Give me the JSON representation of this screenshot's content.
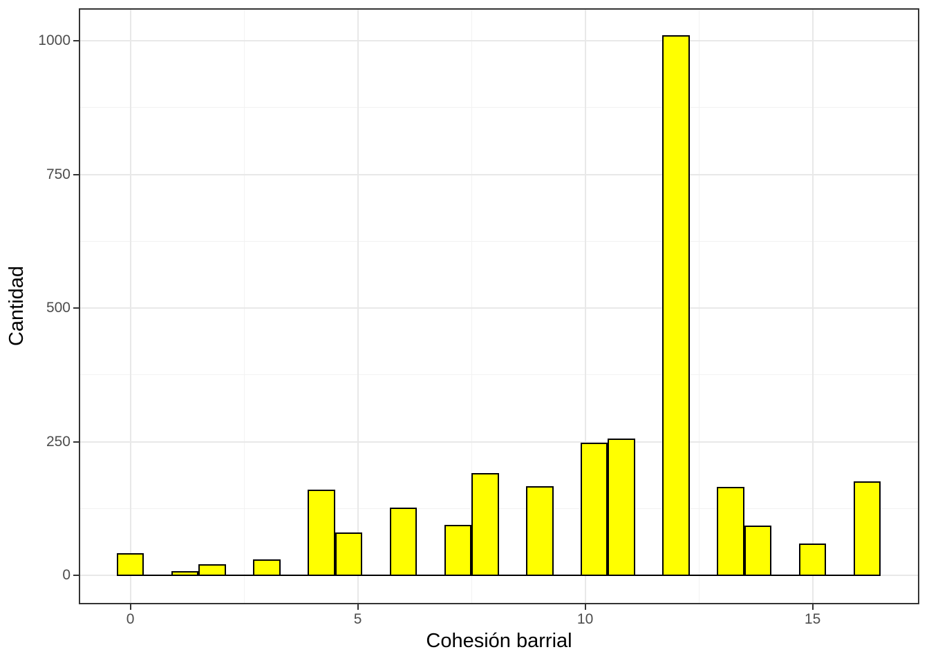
{
  "chart_data": {
    "type": "bar",
    "subtype": "histogram",
    "title": "",
    "xlabel": "Cohesión barrial",
    "ylabel": "Cantidad",
    "x_major_ticks": [
      0,
      5,
      10,
      15
    ],
    "x_tick_labels": [
      "0",
      "5",
      "10",
      "15"
    ],
    "x_minor_gridlines": [
      2.5,
      7.5,
      12.5
    ],
    "y_major_ticks": [
      0,
      250,
      500,
      750,
      1000
    ],
    "y_tick_labels": [
      "0",
      "250",
      "500",
      "750",
      "1000"
    ],
    "y_minor_gridlines": [
      125,
      375,
      625,
      875
    ],
    "xlim": [
      -1.103,
      17.316
    ],
    "ylim": [
      -51.5,
      1058.4
    ],
    "bin_width": 0.6,
    "bars": [
      {
        "x": 0.0,
        "count": 40
      },
      {
        "x": 1.2,
        "count": 7
      },
      {
        "x": 1.8,
        "count": 20
      },
      {
        "x": 3.0,
        "count": 29
      },
      {
        "x": 4.2,
        "count": 159
      },
      {
        "x": 4.8,
        "count": 79
      },
      {
        "x": 6.0,
        "count": 125
      },
      {
        "x": 7.2,
        "count": 93
      },
      {
        "x": 7.8,
        "count": 190
      },
      {
        "x": 9.0,
        "count": 165
      },
      {
        "x": 10.2,
        "count": 247
      },
      {
        "x": 10.8,
        "count": 255
      },
      {
        "x": 12.0,
        "count": 1009
      },
      {
        "x": 13.2,
        "count": 164
      },
      {
        "x": 13.8,
        "count": 92
      },
      {
        "x": 15.0,
        "count": 58
      },
      {
        "x": 16.2,
        "count": 174
      }
    ],
    "zero_line": {
      "x_start": -0.3,
      "x_end": 16.5,
      "y": 0
    },
    "legend": "none",
    "grid": "major-and-minor",
    "colors": {
      "bar_fill": "#ffff00",
      "bar_stroke": "#000000",
      "grid_major": "#e8e8e8",
      "grid_minor": "#f2f2f2",
      "panel_border": "#333333",
      "tick_mark": "#333333",
      "tick_label": "#4d4d4d",
      "axis_title": "#000000",
      "background": "#ffffff"
    }
  }
}
